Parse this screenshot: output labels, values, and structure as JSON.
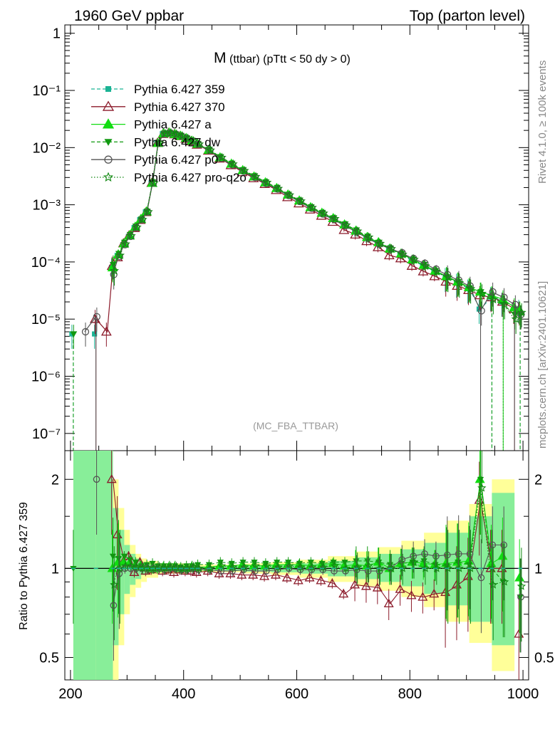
{
  "header": {
    "left": "1960 GeV ppbar",
    "right": "Top (parton level)"
  },
  "side": {
    "rivet": "Rivet 4.1.0, ≥ 100k events",
    "mcplots": "mcplots.cern.ch [arXiv:2401.10621]"
  },
  "colors": {
    "p359": "#1ab394",
    "p370": "#8b1a2a",
    "pa": "#11dd11",
    "pdw": "#109910",
    "pp0": "#555555",
    "pq2o": "#118811",
    "band_yellow": "#ffff99",
    "band_green": "#88ee99"
  },
  "chart_data": [
    {
      "type": "line",
      "title_main": "M",
      "title_sub": "(ttbar)  (pTtt < 50 dy > 0)",
      "watermark": "(MC_FBA_TTBAR)",
      "yscale": "log",
      "xlim": [
        190,
        1010
      ],
      "ylim": [
        5e-08,
        1.4
      ],
      "yticks": [
        {
          "v": 1,
          "label": "1"
        },
        {
          "v": 0.1,
          "label": "10⁻¹"
        },
        {
          "v": 0.01,
          "label": "10⁻²"
        },
        {
          "v": 0.001,
          "label": "10⁻³"
        },
        {
          "v": 0.0001,
          "label": "10⁻⁴"
        },
        {
          "v": 1e-05,
          "label": "10⁻⁵"
        },
        {
          "v": 1e-06,
          "label": "10⁻⁶"
        },
        {
          "v": 1e-07,
          "label": "10⁻⁷"
        }
      ],
      "x": [
        205,
        225,
        245,
        265,
        275,
        285,
        295,
        305,
        315,
        325,
        335,
        345,
        355,
        365,
        375,
        385,
        395,
        405,
        415,
        425,
        445,
        465,
        485,
        505,
        525,
        545,
        565,
        585,
        605,
        625,
        645,
        665,
        685,
        705,
        725,
        745,
        765,
        785,
        805,
        825,
        845,
        865,
        885,
        905,
        925,
        945,
        965,
        985,
        995
      ],
      "series": [
        {
          "name": "Pythia 6.427 359",
          "style": "dashed",
          "marker": "square",
          "color_key": "p359",
          "values": [
            5.5e-06,
            null,
            5.5e-06,
            null,
            8e-05,
            0.00013,
            0.0002,
            0.00028,
            0.0004,
            0.00055,
            0.00075,
            0.0024,
            0.012,
            0.0175,
            0.018,
            0.017,
            0.016,
            0.0145,
            0.013,
            0.0115,
            0.009,
            0.0066,
            0.0051,
            0.0039,
            0.00305,
            0.0024,
            0.0019,
            0.00145,
            0.00115,
            0.00088,
            0.0007,
            0.00056,
            0.00044,
            0.00034,
            0.000265,
            0.00021,
            0.00017,
            0.000135,
            0.000105,
            8.5e-05,
            6.8e-05,
            5.4e-05,
            4.3e-05,
            3.4e-05,
            1.5e-05,
            2.5e-05,
            2e-05,
            null,
            1.5e-05
          ]
        },
        {
          "name": "Pythia 6.427 370",
          "style": "solid",
          "marker": "triangle-open",
          "color_key": "p370",
          "values": [
            null,
            null,
            1e-05,
            6e-06,
            8.5e-05,
            0.00012,
            0.00021,
            0.00029,
            0.00039,
            0.00054,
            0.00074,
            0.0024,
            0.012,
            0.0172,
            0.018,
            0.017,
            0.0158,
            0.0142,
            0.0128,
            0.0112,
            0.0088,
            0.0064,
            0.0049,
            0.0037,
            0.0029,
            0.0023,
            0.0018,
            0.00135,
            0.00105,
            0.00082,
            0.00064,
            0.0005,
            0.00036,
            0.0003,
            0.00023,
            0.00018,
            0.00013,
            0.000115,
            8.5e-05,
            6.8e-05,
            5.6e-05,
            4.5e-05,
            3.8e-05,
            3.2e-05,
            2.6e-05,
            2.4e-05,
            2e-05,
            1.5e-05,
            1.4e-05
          ]
        },
        {
          "name": "Pythia 6.427 a",
          "style": "solid",
          "marker": "triangle",
          "color_key": "pa",
          "values": [
            null,
            null,
            null,
            null,
            8e-05,
            0.000135,
            0.00021,
            0.00029,
            0.00041,
            0.00056,
            0.00076,
            0.0024,
            0.012,
            0.0176,
            0.0182,
            0.0172,
            0.016,
            0.0146,
            0.0131,
            0.0116,
            0.0091,
            0.0067,
            0.0052,
            0.004,
            0.0031,
            0.00245,
            0.00195,
            0.0015,
            0.00118,
            0.0009,
            0.00072,
            0.00058,
            0.00045,
            0.00035,
            0.00027,
            0.00022,
            0.00017,
            0.00014,
            0.00011,
            8.8e-05,
            7e-05,
            5.6e-05,
            4.5e-05,
            3.6e-05,
            3e-05,
            2.6e-05,
            2.2e-05,
            1.6e-05,
            1.4e-05
          ]
        },
        {
          "name": "Pythia 6.427 dw",
          "style": "dashed",
          "marker": "triangle-down",
          "color_key": "pdw",
          "values": [
            5.5e-06,
            null,
            null,
            null,
            9e-05,
            0.00014,
            0.00022,
            0.0003,
            0.00042,
            0.00056,
            0.00077,
            0.0025,
            0.0122,
            0.0178,
            0.0184,
            0.0174,
            0.0162,
            0.0148,
            0.0133,
            0.0118,
            0.0093,
            0.0069,
            0.0053,
            0.0041,
            0.0032,
            0.0025,
            0.002,
            0.00152,
            0.0012,
            0.00092,
            0.00073,
            0.00059,
            0.00046,
            0.00036,
            0.00028,
            0.00022,
            0.000175,
            0.00014,
            0.00011,
            9e-05,
            7e-05,
            5.5e-05,
            4.5e-05,
            3.5e-05,
            3e-05,
            2.5e-05,
            1.8e-05,
            1.2e-05,
            1.2e-05
          ]
        },
        {
          "name": "Pythia 6.427 p0",
          "style": "solid",
          "marker": "circle-open",
          "color_key": "pp0",
          "values": [
            null,
            6e-06,
            1.1e-05,
            null,
            6e-05,
            0.000125,
            0.0002,
            0.00028,
            0.0004,
            0.00055,
            0.00075,
            0.0024,
            0.012,
            0.0174,
            0.018,
            0.0171,
            0.0159,
            0.0144,
            0.013,
            0.0114,
            0.0089,
            0.0065,
            0.005,
            0.00385,
            0.003,
            0.00235,
            0.00188,
            0.00145,
            0.00114,
            0.00087,
            0.00069,
            0.00055,
            0.00043,
            0.000335,
            0.00026,
            0.000205,
            0.00017,
            0.000145,
            0.000115,
            9.5e-05,
            7.5e-05,
            6e-05,
            4.8e-05,
            3.8e-05,
            1.4e-05,
            3e-05,
            2.4e-05,
            1.8e-05,
            1.2e-05
          ]
        },
        {
          "name": "Pythia 6.427 pro-q2o",
          "style": "dotted",
          "marker": "star",
          "color_key": "pq2o",
          "values": [
            null,
            null,
            null,
            null,
            7e-05,
            0.00013,
            0.000205,
            0.000285,
            0.000405,
            0.00055,
            0.00075,
            0.0024,
            0.0121,
            0.0175,
            0.0181,
            0.0172,
            0.016,
            0.0145,
            0.0131,
            0.0115,
            0.009,
            0.0067,
            0.00515,
            0.00395,
            0.0031,
            0.00245,
            0.00192,
            0.00148,
            0.00116,
            0.00089,
            0.00071,
            0.00057,
            0.00044,
            0.000345,
            0.00027,
            0.00021,
            0.00017,
            0.000135,
            0.00011,
            8.5e-05,
            6.8e-05,
            5.4e-05,
            4.3e-05,
            3.4e-05,
            2.8e-05,
            2.2e-05,
            1.8e-05,
            1e-05,
            1.3e-05
          ]
        }
      ]
    },
    {
      "type": "line",
      "ylabel": "Ratio to Pythia 6.427 359",
      "xlabel": "",
      "yscale": "log",
      "xlim": [
        190,
        1010
      ],
      "ylim": [
        0.42,
        2.5
      ],
      "yticks": [
        {
          "v": 0.5,
          "label": "0.5"
        },
        {
          "v": 1,
          "label": "1"
        },
        {
          "v": 2,
          "label": "2"
        }
      ],
      "xticks": [
        {
          "v": 200,
          "label": "200"
        },
        {
          "v": 400,
          "label": "400"
        },
        {
          "v": 600,
          "label": "600"
        },
        {
          "v": 800,
          "label": "800"
        },
        {
          "v": 1000,
          "label": "1000"
        }
      ],
      "reference": 1,
      "band_x": [
        205,
        245,
        275,
        285,
        295,
        305,
        315,
        325,
        335,
        355,
        405,
        455,
        505,
        555,
        605,
        655,
        705,
        745,
        785,
        825,
        865,
        905,
        945,
        985
      ],
      "band_yellow_lo": [
        0.35,
        0.35,
        0.4,
        0.55,
        0.7,
        0.8,
        0.86,
        0.9,
        0.93,
        0.96,
        0.97,
        0.97,
        0.96,
        0.95,
        0.93,
        0.9,
        0.87,
        0.84,
        0.8,
        0.74,
        0.66,
        0.56,
        0.45,
        0.4
      ],
      "band_yellow_hi": [
        2.5,
        2.5,
        2.0,
        1.6,
        1.35,
        1.2,
        1.12,
        1.08,
        1.06,
        1.04,
        1.03,
        1.03,
        1.04,
        1.05,
        1.07,
        1.1,
        1.14,
        1.18,
        1.24,
        1.32,
        1.45,
        1.65,
        2.0,
        2.5
      ],
      "band_green_lo": [
        0.35,
        0.35,
        0.55,
        0.7,
        0.82,
        0.88,
        0.92,
        0.95,
        0.97,
        0.98,
        0.985,
        0.98,
        0.975,
        0.97,
        0.96,
        0.94,
        0.92,
        0.9,
        0.87,
        0.82,
        0.75,
        0.66,
        0.55,
        0.45
      ],
      "band_green_hi": [
        2.5,
        2.5,
        1.6,
        1.35,
        1.2,
        1.12,
        1.08,
        1.05,
        1.03,
        1.02,
        1.015,
        1.02,
        1.025,
        1.03,
        1.04,
        1.06,
        1.09,
        1.12,
        1.16,
        1.22,
        1.32,
        1.5,
        1.8,
        2.3
      ],
      "series": [
        {
          "name": "Pythia 6.427 370",
          "color_key": "p370",
          "marker": "triangle-open",
          "style": "solid",
          "values": [
            null,
            null,
            null,
            null,
            2.0,
            1.3,
            1.05,
            1.1,
            0.97,
            1.05,
            0.98,
            0.99,
            1.0,
            0.98,
            0.99,
            0.97,
            0.99,
            0.98,
            0.98,
            0.97,
            0.98,
            0.96,
            0.96,
            0.95,
            0.95,
            0.94,
            0.95,
            0.93,
            0.91,
            0.93,
            0.91,
            0.89,
            0.82,
            0.88,
            0.87,
            0.86,
            0.76,
            0.85,
            0.81,
            0.8,
            0.82,
            0.83,
            0.88,
            0.94,
            1.7,
            1.0,
            1.0,
            null,
            0.6
          ]
        },
        {
          "name": "Pythia 6.427 a",
          "color_key": "pa",
          "marker": "triangle",
          "style": "solid",
          "values": [
            null,
            null,
            null,
            null,
            1.0,
            1.05,
            1.05,
            1.04,
            1.02,
            1.02,
            1.01,
            1.0,
            1.0,
            1.01,
            1.01,
            1.01,
            1.0,
            1.0,
            1.01,
            1.01,
            1.01,
            1.02,
            1.02,
            1.03,
            1.02,
            1.02,
            1.03,
            1.03,
            1.03,
            1.02,
            1.03,
            1.04,
            1.02,
            1.03,
            1.02,
            1.05,
            1.0,
            1.04,
            1.05,
            1.04,
            1.03,
            1.04,
            1.05,
            1.06,
            2.0,
            1.04,
            1.1,
            null,
            0.93
          ]
        },
        {
          "name": "Pythia 6.427 dw",
          "color_key": "pdw",
          "marker": "triangle-down",
          "style": "dashed",
          "values": [
            1.0,
            null,
            null,
            null,
            1.1,
            1.08,
            1.1,
            1.07,
            1.05,
            1.02,
            1.03,
            1.04,
            1.02,
            1.02,
            1.02,
            1.02,
            1.01,
            1.02,
            1.02,
            1.03,
            1.03,
            1.05,
            1.04,
            1.05,
            1.05,
            1.04,
            1.05,
            1.05,
            1.04,
            1.05,
            1.04,
            1.05,
            1.05,
            1.06,
            1.06,
            1.05,
            1.03,
            1.04,
            1.05,
            1.06,
            1.03,
            1.02,
            1.05,
            1.03,
            2.0,
            1.0,
            0.9,
            null,
            0.8
          ]
        },
        {
          "name": "Pythia 6.427 p0",
          "color_key": "pp0",
          "marker": "circle-open",
          "style": "solid",
          "values": [
            null,
            null,
            2.0,
            null,
            0.75,
            0.96,
            1.0,
            1.0,
            1.0,
            1.0,
            1.0,
            1.0,
            1.0,
            0.99,
            1.0,
            1.0,
            0.99,
            0.99,
            1.0,
            0.99,
            0.99,
            0.98,
            0.98,
            0.99,
            0.98,
            0.98,
            0.99,
            1.0,
            0.99,
            0.99,
            0.99,
            0.98,
            0.98,
            0.99,
            0.98,
            0.98,
            1.0,
            1.07,
            1.1,
            1.12,
            1.1,
            1.11,
            1.12,
            1.12,
            0.93,
            1.2,
            1.2,
            null,
            0.8
          ]
        },
        {
          "name": "Pythia 6.427 pro-q2o",
          "color_key": "pq2o",
          "marker": "star",
          "style": "dotted",
          "values": [
            null,
            null,
            null,
            null,
            0.88,
            1.0,
            1.02,
            1.02,
            1.01,
            1.0,
            1.0,
            1.0,
            1.01,
            1.0,
            1.01,
            1.01,
            1.0,
            1.0,
            1.01,
            1.0,
            1.0,
            1.02,
            1.01,
            1.01,
            1.02,
            1.02,
            1.01,
            1.02,
            1.01,
            1.01,
            1.01,
            1.02,
            1.0,
            1.01,
            1.02,
            1.0,
            1.0,
            1.0,
            1.05,
            1.0,
            1.0,
            1.0,
            1.0,
            1.0,
            1.87,
            0.88,
            0.9,
            null,
            0.87
          ]
        }
      ]
    }
  ]
}
